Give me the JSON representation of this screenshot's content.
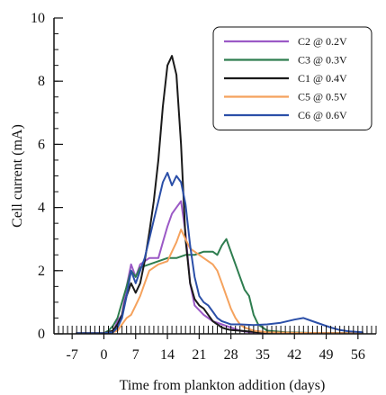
{
  "chart_data": {
    "type": "line",
    "title": "",
    "xlabel": "Time from plankton addition (days)",
    "ylabel": "Cell current (mA)",
    "xlim": [
      -11,
      60
    ],
    "ylim": [
      0,
      10
    ],
    "xticks": [
      -7,
      0,
      7,
      14,
      21,
      28,
      35,
      42,
      49,
      56
    ],
    "yticks": [
      0,
      2,
      4,
      6,
      8,
      10
    ],
    "x_minor_step": 1,
    "y_minor_step": 0.5,
    "grid": false,
    "legend_position": "top-right",
    "series": [
      {
        "name": "C2 @ 0.2V",
        "color": "#9b59c6",
        "points": [
          [
            -6,
            0.02
          ],
          [
            0,
            0.02
          ],
          [
            2,
            0.05
          ],
          [
            3,
            0.4
          ],
          [
            4,
            0.6
          ],
          [
            5,
            1.5
          ],
          [
            6,
            2.2
          ],
          [
            7,
            1.8
          ],
          [
            8,
            2.2
          ],
          [
            10,
            2.4
          ],
          [
            12,
            2.4
          ],
          [
            13,
            2.9
          ],
          [
            14,
            3.4
          ],
          [
            15,
            3.8
          ],
          [
            16,
            4.0
          ],
          [
            17,
            4.2
          ],
          [
            18,
            3.2
          ],
          [
            19,
            1.6
          ],
          [
            20,
            0.9
          ],
          [
            22,
            0.6
          ],
          [
            24,
            0.4
          ],
          [
            26,
            0.3
          ],
          [
            28,
            0.2
          ],
          [
            30,
            0.1
          ],
          [
            32,
            0.05
          ],
          [
            36,
            0.03
          ],
          [
            42,
            0.02
          ],
          [
            50,
            0.02
          ],
          [
            57,
            0.02
          ]
        ]
      },
      {
        "name": "C3 @ 0.3V",
        "color": "#2e7d4f",
        "points": [
          [
            -6,
            0.02
          ],
          [
            0,
            0.02
          ],
          [
            1,
            0.1
          ],
          [
            2,
            0.25
          ],
          [
            3,
            0.5
          ],
          [
            4,
            1.0
          ],
          [
            5,
            1.5
          ],
          [
            6,
            2.0
          ],
          [
            7,
            1.8
          ],
          [
            8,
            2.1
          ],
          [
            10,
            2.2
          ],
          [
            12,
            2.3
          ],
          [
            14,
            2.4
          ],
          [
            16,
            2.4
          ],
          [
            18,
            2.5
          ],
          [
            20,
            2.5
          ],
          [
            22,
            2.6
          ],
          [
            24,
            2.6
          ],
          [
            25,
            2.5
          ],
          [
            26,
            2.8
          ],
          [
            27,
            3.0
          ],
          [
            28,
            2.6
          ],
          [
            29,
            2.2
          ],
          [
            30,
            1.8
          ],
          [
            31,
            1.4
          ],
          [
            32,
            1.2
          ],
          [
            33,
            0.6
          ],
          [
            34,
            0.3
          ],
          [
            36,
            0.1
          ],
          [
            40,
            0.05
          ],
          [
            48,
            0.02
          ],
          [
            57,
            0.02
          ]
        ]
      },
      {
        "name": "C1 @ 0.4V",
        "color": "#1a1a1a",
        "points": [
          [
            -6,
            0.02
          ],
          [
            0,
            0.02
          ],
          [
            2,
            0.1
          ],
          [
            3,
            0.3
          ],
          [
            4,
            0.6
          ],
          [
            5,
            1.2
          ],
          [
            6,
            1.6
          ],
          [
            7,
            1.3
          ],
          [
            8,
            1.6
          ],
          [
            9,
            2.3
          ],
          [
            10,
            3.2
          ],
          [
            11,
            4.2
          ],
          [
            12,
            5.5
          ],
          [
            13,
            7.2
          ],
          [
            14,
            8.5
          ],
          [
            15,
            8.8
          ],
          [
            16,
            8.2
          ],
          [
            17,
            6.0
          ],
          [
            18,
            3.0
          ],
          [
            19,
            1.6
          ],
          [
            20,
            1.1
          ],
          [
            21,
            0.9
          ],
          [
            22,
            0.8
          ],
          [
            23,
            0.6
          ],
          [
            24,
            0.4
          ],
          [
            25,
            0.3
          ],
          [
            26,
            0.2
          ],
          [
            27,
            0.15
          ],
          [
            28,
            0.12
          ],
          [
            30,
            0.1
          ],
          [
            34,
            0.05
          ],
          [
            40,
            0.03
          ],
          [
            50,
            0.02
          ],
          [
            57,
            0.02
          ]
        ]
      },
      {
        "name": "C5 @ 0.5V",
        "color": "#f5a25d",
        "points": [
          [
            -6,
            0.02
          ],
          [
            0,
            0.02
          ],
          [
            2,
            0.05
          ],
          [
            3,
            0.1
          ],
          [
            4,
            0.3
          ],
          [
            5,
            0.5
          ],
          [
            6,
            0.6
          ],
          [
            7,
            0.9
          ],
          [
            8,
            1.2
          ],
          [
            9,
            1.6
          ],
          [
            10,
            2.0
          ],
          [
            12,
            2.2
          ],
          [
            14,
            2.3
          ],
          [
            15,
            2.6
          ],
          [
            16,
            2.9
          ],
          [
            17,
            3.3
          ],
          [
            18,
            3.0
          ],
          [
            19,
            2.7
          ],
          [
            20,
            2.6
          ],
          [
            22,
            2.4
          ],
          [
            24,
            2.2
          ],
          [
            25,
            2.0
          ],
          [
            26,
            1.6
          ],
          [
            27,
            1.2
          ],
          [
            28,
            0.8
          ],
          [
            29,
            0.5
          ],
          [
            30,
            0.3
          ],
          [
            31,
            0.2
          ],
          [
            33,
            0.1
          ],
          [
            36,
            0.05
          ],
          [
            42,
            0.03
          ],
          [
            50,
            0.02
          ],
          [
            57,
            0.02
          ]
        ]
      },
      {
        "name": "C6 @ 0.6V",
        "color": "#2b4fa8",
        "points": [
          [
            -6,
            0.02
          ],
          [
            0,
            0.02
          ],
          [
            2,
            0.05
          ],
          [
            3,
            0.2
          ],
          [
            4,
            0.5
          ],
          [
            5,
            1.2
          ],
          [
            6,
            2.0
          ],
          [
            7,
            1.6
          ],
          [
            8,
            2.0
          ],
          [
            9,
            2.4
          ],
          [
            10,
            3.0
          ],
          [
            11,
            3.6
          ],
          [
            12,
            4.2
          ],
          [
            13,
            4.8
          ],
          [
            14,
            5.1
          ],
          [
            15,
            4.7
          ],
          [
            16,
            5.0
          ],
          [
            17,
            4.8
          ],
          [
            18,
            4.1
          ],
          [
            19,
            2.8
          ],
          [
            20,
            1.8
          ],
          [
            21,
            1.2
          ],
          [
            22,
            1.0
          ],
          [
            23,
            0.9
          ],
          [
            24,
            0.7
          ],
          [
            25,
            0.5
          ],
          [
            26,
            0.4
          ],
          [
            27,
            0.35
          ],
          [
            28,
            0.3
          ],
          [
            30,
            0.3
          ],
          [
            33,
            0.28
          ],
          [
            36,
            0.3
          ],
          [
            39,
            0.35
          ],
          [
            42,
            0.45
          ],
          [
            44,
            0.5
          ],
          [
            46,
            0.4
          ],
          [
            48,
            0.3
          ],
          [
            50,
            0.2
          ],
          [
            52,
            0.12
          ],
          [
            54,
            0.08
          ],
          [
            57,
            0.05
          ]
        ]
      }
    ]
  }
}
